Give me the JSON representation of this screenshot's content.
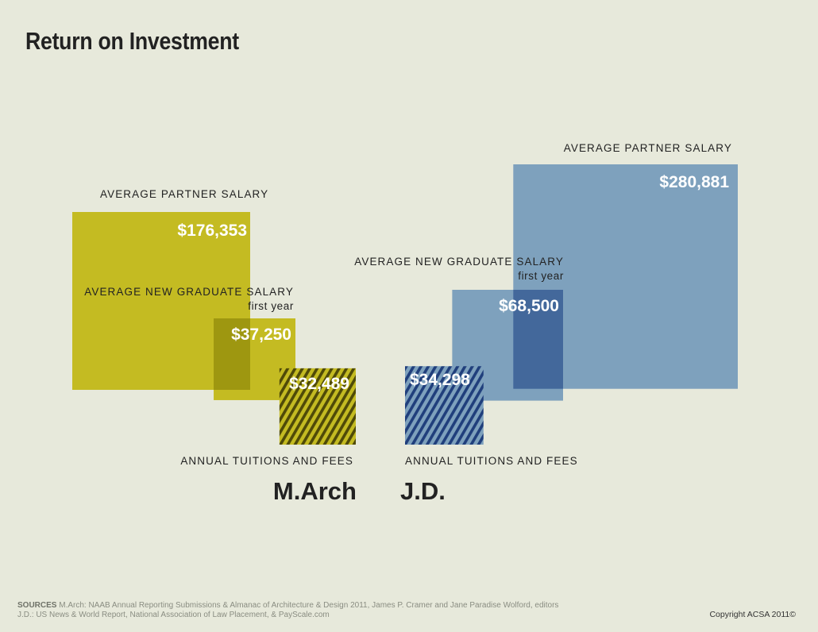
{
  "title": "Return on Investment",
  "colors": {
    "march": "#c4bb22",
    "march_overlap": "#9e9710",
    "march_stripe": "#4f4a08",
    "jd": "#7ea1bd",
    "jd_overlap": "#43689b",
    "jd_stripe": "#203f7c"
  },
  "chart_data": {
    "type": "area",
    "title": "Return on Investment",
    "groups": [
      {
        "name": "M.Arch",
        "items": [
          {
            "label": "AVERAGE PARTNER SALARY",
            "sublabel": "",
            "value": 176353,
            "display": "$176,353"
          },
          {
            "label": "AVERAGE NEW GRADUATE SALARY",
            "sublabel": "first year",
            "value": 37250,
            "display": "$37,250"
          },
          {
            "label": "ANNUAL TUITIONS AND FEES",
            "sublabel": "",
            "value": 32489,
            "display": "$32,489"
          }
        ]
      },
      {
        "name": "J.D.",
        "items": [
          {
            "label": "AVERAGE PARTNER SALARY",
            "sublabel": "",
            "value": 280881,
            "display": "$280,881"
          },
          {
            "label": "AVERAGE NEW GRADUATE SALARY",
            "sublabel": "first year",
            "value": 68500,
            "display": "$68,500"
          },
          {
            "label": "ANNUAL TUITIONS AND FEES",
            "sublabel": "",
            "value": 34298,
            "display": "$34,298"
          }
        ]
      }
    ]
  },
  "sources": {
    "heading": "SOURCES",
    "line1": "M.Arch: NAAB Annual Reporting Submissions & Almanac of Architecture & Design 2011, James P. Cramer and Jane Paradise Wolford, editors",
    "line2": "J.D.: US News & World Report, National Association of Law Placement, & PayScale.com"
  },
  "copyright": "Copyright ACSA 2011©"
}
